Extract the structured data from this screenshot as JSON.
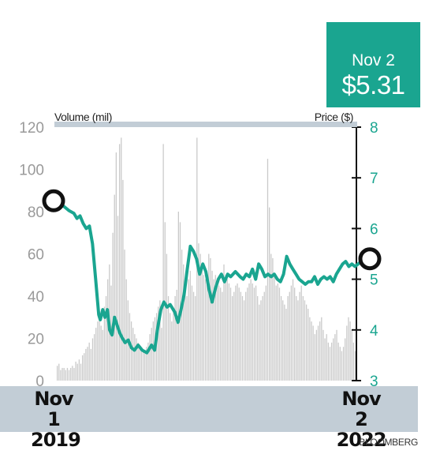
{
  "callout": {
    "date": "Nov 2",
    "price": "$5.31"
  },
  "source": "BLOOMBERG",
  "colors": {
    "teal": "#1aa590",
    "bar": "#c9c9c9",
    "band": "#c2cdd6",
    "left_axis_text": "#9a9a9a"
  },
  "chart_data": {
    "type": "bar+line",
    "x_start_label": [
      "Nov 1",
      "2019"
    ],
    "x_end_label": [
      "Nov 2",
      "2022"
    ],
    "left_axis": {
      "label": "Volume (mil)",
      "ticks": [
        0,
        20,
        40,
        60,
        80,
        100,
        120
      ],
      "range": [
        0,
        120
      ]
    },
    "right_axis": {
      "label": "Price ($)",
      "ticks": [
        3,
        4,
        5,
        6,
        7,
        8
      ],
      "range": [
        3,
        8
      ]
    },
    "volume": [
      7,
      8,
      5,
      6,
      6,
      5,
      6,
      5,
      6,
      7,
      6,
      9,
      8,
      10,
      8,
      12,
      13,
      15,
      16,
      18,
      15,
      20,
      22,
      25,
      28,
      30,
      26,
      24,
      35,
      40,
      48,
      55,
      45,
      70,
      88,
      108,
      78,
      112,
      115,
      95,
      62,
      48,
      38,
      32,
      28,
      25,
      22,
      20,
      18,
      16,
      15,
      14,
      13,
      16,
      18,
      22,
      25,
      28,
      30,
      32,
      35,
      38,
      25,
      112,
      75,
      60,
      40,
      32,
      28,
      34,
      40,
      43,
      80,
      75,
      62,
      55,
      46,
      40,
      48,
      52,
      45,
      42,
      40,
      115,
      65,
      60,
      55,
      50,
      48,
      46,
      60,
      58,
      52,
      48,
      50,
      46,
      45,
      44,
      42,
      55,
      50,
      48,
      46,
      44,
      40,
      42,
      45,
      46,
      44,
      42,
      40,
      38,
      42,
      44,
      46,
      48,
      46,
      44,
      45,
      40,
      36,
      38,
      40,
      42,
      45,
      105,
      82,
      60,
      58,
      50,
      45,
      46,
      44,
      40,
      38,
      36,
      34,
      40,
      42,
      45,
      48,
      44,
      40,
      38,
      42,
      45,
      40,
      38,
      36,
      34,
      30,
      28,
      26,
      22,
      24,
      26,
      28,
      30,
      24,
      20,
      22,
      18,
      16,
      18,
      20,
      22,
      24,
      18,
      16,
      14,
      16,
      20,
      26,
      30,
      28,
      24,
      18,
      14
    ],
    "price_points": [
      [
        0,
        6.5
      ],
      [
        0.02,
        6.45
      ],
      [
        0.04,
        6.35
      ],
      [
        0.055,
        6.3
      ],
      [
        0.065,
        6.2
      ],
      [
        0.075,
        6.25
      ],
      [
        0.085,
        6.1
      ],
      [
        0.095,
        6.0
      ],
      [
        0.105,
        6.05
      ],
      [
        0.115,
        5.7
      ],
      [
        0.125,
        5.0
      ],
      [
        0.135,
        4.3
      ],
      [
        0.14,
        4.2
      ],
      [
        0.148,
        4.4
      ],
      [
        0.155,
        4.25
      ],
      [
        0.163,
        4.4
      ],
      [
        0.17,
        4.0
      ],
      [
        0.178,
        3.9
      ],
      [
        0.186,
        4.25
      ],
      [
        0.194,
        4.1
      ],
      [
        0.202,
        3.95
      ],
      [
        0.21,
        3.85
      ],
      [
        0.22,
        3.75
      ],
      [
        0.23,
        3.8
      ],
      [
        0.24,
        3.65
      ],
      [
        0.25,
        3.6
      ],
      [
        0.262,
        3.7
      ],
      [
        0.275,
        3.6
      ],
      [
        0.29,
        3.55
      ],
      [
        0.305,
        3.7
      ],
      [
        0.315,
        3.6
      ],
      [
        0.325,
        4.05
      ],
      [
        0.335,
        4.4
      ],
      [
        0.345,
        4.55
      ],
      [
        0.355,
        4.45
      ],
      [
        0.365,
        4.5
      ],
      [
        0.38,
        4.35
      ],
      [
        0.39,
        4.15
      ],
      [
        0.4,
        4.4
      ],
      [
        0.41,
        4.7
      ],
      [
        0.42,
        5.2
      ],
      [
        0.43,
        5.65
      ],
      [
        0.44,
        5.55
      ],
      [
        0.45,
        5.4
      ],
      [
        0.46,
        5.1
      ],
      [
        0.47,
        5.3
      ],
      [
        0.48,
        5.15
      ],
      [
        0.49,
        4.8
      ],
      [
        0.5,
        4.55
      ],
      [
        0.51,
        4.8
      ],
      [
        0.52,
        5.0
      ],
      [
        0.53,
        5.1
      ],
      [
        0.54,
        4.95
      ],
      [
        0.55,
        5.1
      ],
      [
        0.56,
        5.05
      ],
      [
        0.575,
        5.15
      ],
      [
        0.59,
        5.05
      ],
      [
        0.6,
        5.0
      ],
      [
        0.61,
        5.1
      ],
      [
        0.62,
        5.05
      ],
      [
        0.63,
        5.2
      ],
      [
        0.64,
        5.0
      ],
      [
        0.65,
        5.3
      ],
      [
        0.66,
        5.2
      ],
      [
        0.67,
        5.05
      ],
      [
        0.68,
        5.1
      ],
      [
        0.69,
        5.05
      ],
      [
        0.7,
        5.1
      ],
      [
        0.71,
        5.0
      ],
      [
        0.72,
        4.95
      ],
      [
        0.73,
        5.1
      ],
      [
        0.74,
        5.45
      ],
      [
        0.75,
        5.3
      ],
      [
        0.76,
        5.2
      ],
      [
        0.77,
        5.1
      ],
      [
        0.78,
        5.0
      ],
      [
        0.79,
        4.95
      ],
      [
        0.8,
        4.9
      ],
      [
        0.81,
        4.95
      ],
      [
        0.82,
        4.95
      ],
      [
        0.83,
        5.05
      ],
      [
        0.84,
        4.9
      ],
      [
        0.85,
        5.0
      ],
      [
        0.86,
        5.05
      ],
      [
        0.87,
        5.0
      ],
      [
        0.88,
        5.05
      ],
      [
        0.89,
        4.95
      ],
      [
        0.9,
        5.1
      ],
      [
        0.91,
        5.2
      ],
      [
        0.92,
        5.3
      ],
      [
        0.93,
        5.35
      ],
      [
        0.94,
        5.25
      ],
      [
        0.95,
        5.3
      ],
      [
        0.96,
        5.25
      ],
      [
        0.97,
        5.3
      ],
      [
        0.98,
        5.35
      ],
      [
        0.99,
        5.4
      ],
      [
        1.0,
        5.31
      ]
    ],
    "start_price": 6.5,
    "end_price": 5.31
  }
}
